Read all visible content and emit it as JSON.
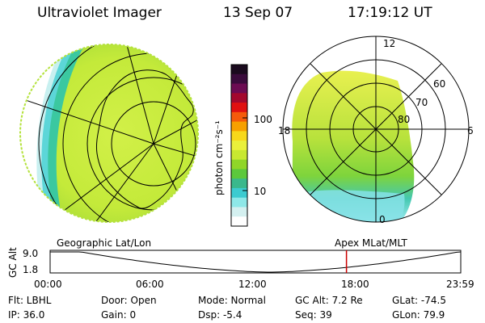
{
  "header": {
    "instrument": "Ultraviolet Imager",
    "date": "13 Sep 07",
    "time": "17:19:12 UT"
  },
  "left_panel": {
    "label": "Geographic Lat/Lon",
    "description_colors": [
      "#c8ee3c",
      "#9bd83a",
      "#3bc88c",
      "#42c8d4"
    ]
  },
  "color_bar": {
    "unit_label": "photon cm⁻²s⁻¹",
    "tick_100": "100",
    "tick_10": "10",
    "colors_top_to_bottom": [
      "#1a0a1e",
      "#3a0b3c",
      "#6c0b52",
      "#a3082d",
      "#e01010",
      "#f55a0a",
      "#f7a000",
      "#f7d81a",
      "#eaf03a",
      "#c8e830",
      "#90d628",
      "#5cc83c",
      "#3ab88c",
      "#3ccbd0",
      "#8ee8e8",
      "#d4f0f0",
      "#ffffff"
    ]
  },
  "right_panel": {
    "label": "Apex MLat/MLT",
    "mlt_12": "12",
    "mlt_18": "18",
    "mlt_6": "6",
    "mlt_0": "0",
    "lat_60": "60",
    "lat_70": "70",
    "lat_80": "80"
  },
  "timeline": {
    "y_axis_label": "GC Alt",
    "y_top": "9.0",
    "y_bottom": "1.8",
    "x_ticks": [
      "00:00",
      "06:00",
      "12:00",
      "18:00",
      "23:59"
    ],
    "current_time_fraction": 0.7217,
    "current_marker_color": "#cc0000"
  },
  "info": {
    "flt": "Flt: LBHL",
    "ip": "IP: 36.0",
    "door": "Door: Open",
    "gain": "Gain:  0",
    "mode": "Mode: Normal",
    "dsp": "Dsp:    -5.4",
    "gc_alt": "GC Alt: 7.2 Re",
    "seq": "Seq: 39",
    "glat": "GLat:  -74.5",
    "glon": "GLon:  79.9"
  }
}
